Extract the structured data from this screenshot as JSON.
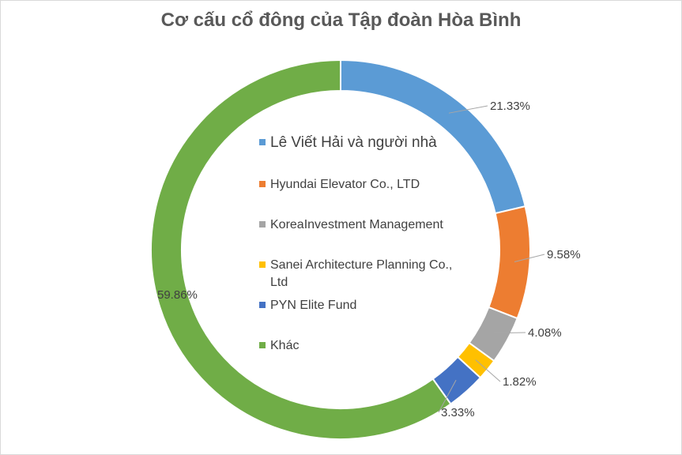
{
  "chart_data": {
    "type": "pie",
    "title": "Cơ cấu cổ đông của Tập đoàn Hòa Bình",
    "categories": [
      "Lê Viết Hải và người nhà",
      "Hyundai Elevator Co., LTD",
      "KoreaInvestment Management",
      "Sanei Architecture Planning Co., Ltd",
      "PYN Elite Fund",
      "Khác"
    ],
    "values": [
      21.33,
      9.58,
      4.08,
      1.82,
      3.33,
      59.86
    ],
    "value_labels": [
      "21.33%",
      "9.58%",
      "4.08%",
      "1.82%",
      "3.33%",
      "59.86%"
    ],
    "colors": [
      "#5b9bd5",
      "#ed7d31",
      "#a5a5a5",
      "#ffc000",
      "#4472c4",
      "#70ad47"
    ],
    "donut": true,
    "legend_position": "center"
  }
}
